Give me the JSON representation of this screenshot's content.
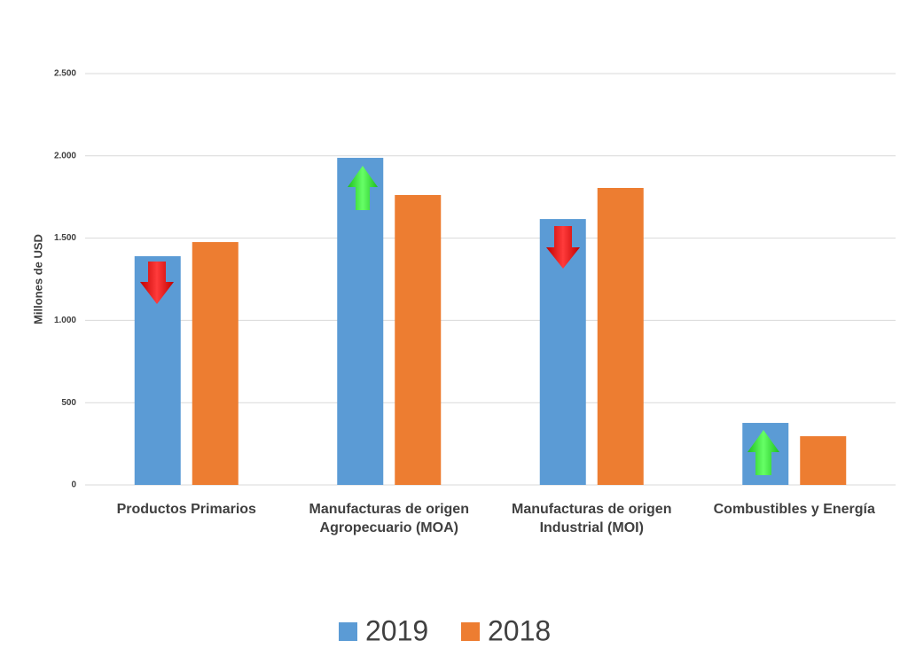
{
  "chart_data": {
    "type": "bar",
    "y_axis_label": "Millones de USD",
    "categories": [
      "Productos Primarios",
      "Manufacturas de origen Agropecuario (MOA)",
      "Manufacturas de origen Industrial (MOI)",
      "Combustibles y Energía"
    ],
    "series": [
      {
        "name": "2019",
        "color": "#5b9bd5",
        "values": [
          1390,
          1988,
          1616,
          377
        ]
      },
      {
        "name": "2018",
        "color": "#ed7d31",
        "values": [
          1476,
          1762,
          1805,
          296
        ]
      }
    ],
    "ylim": [
      0,
      2500
    ],
    "yticks": [
      0,
      500,
      {
        "value": 1000,
        "label": "1.000"
      },
      {
        "value": 1500,
        "label": "1.500"
      },
      {
        "value": 2000,
        "label": "2.000"
      },
      {
        "value": 2500,
        "label": "2.500"
      }
    ],
    "grid": true,
    "legend": "bottom"
  }
}
